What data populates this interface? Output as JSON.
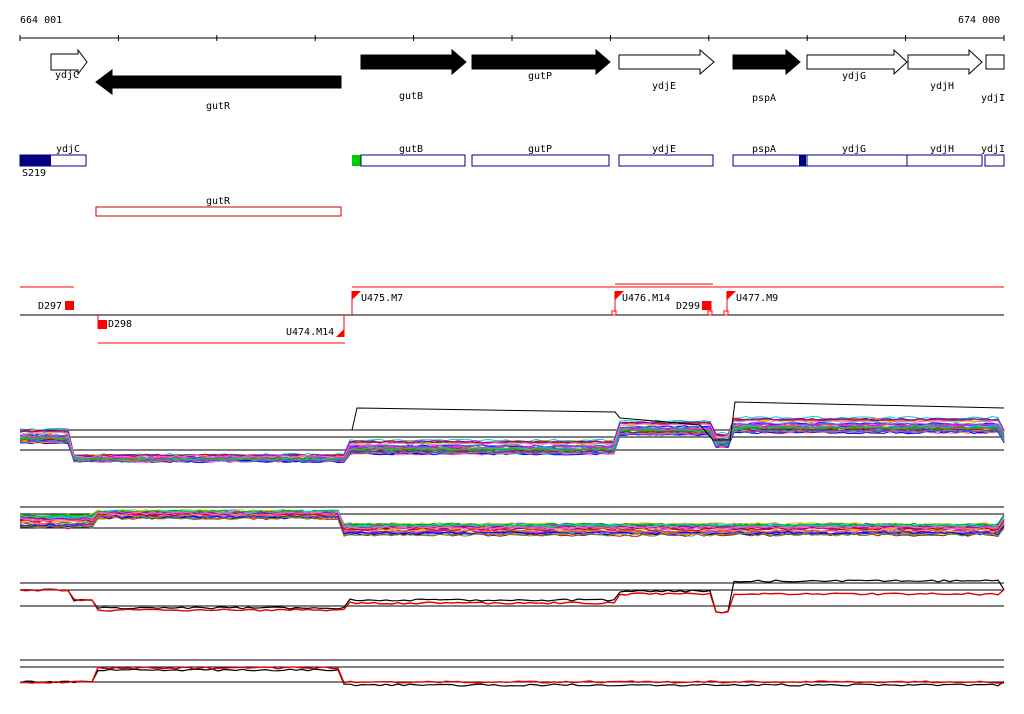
{
  "ruler": {
    "start_label": "664 001",
    "end_label": "674 000"
  },
  "genes": [
    {
      "name": "ydjC",
      "strand": "+",
      "filled": false
    },
    {
      "name": "gutR",
      "strand": "-",
      "filled": true
    },
    {
      "name": "gutB",
      "strand": "+",
      "filled": true
    },
    {
      "name": "gutP",
      "strand": "+",
      "filled": true
    },
    {
      "name": "ydjE",
      "strand": "+",
      "filled": false
    },
    {
      "name": "pspA",
      "strand": "+",
      "filled": true
    },
    {
      "name": "ydjG",
      "strand": "+",
      "filled": false
    },
    {
      "name": "ydjH",
      "strand": "+",
      "filled": false
    },
    {
      "name": "ydjI",
      "strand": "+",
      "filled": false
    }
  ],
  "annotation_boxes": [
    {
      "name": "ydjC",
      "color": "#000080"
    },
    {
      "name": "gutB",
      "color": "#000080"
    },
    {
      "name": "gutP",
      "color": "#000080"
    },
    {
      "name": "ydjE",
      "color": "#000080"
    },
    {
      "name": "pspA",
      "color": "#000080"
    },
    {
      "name": "ydjG",
      "color": "#000080"
    },
    {
      "name": "ydjH",
      "color": "#000080"
    },
    {
      "name": "ydjI",
      "color": "#000080"
    },
    {
      "name": "gutR",
      "color": "#cc0000"
    }
  ],
  "site_label": "S219",
  "markers": [
    {
      "label": "D297",
      "kind": "block"
    },
    {
      "label": "D298",
      "kind": "block"
    },
    {
      "label": "U474.M14",
      "kind": "flag"
    },
    {
      "label": "U475.M7",
      "kind": "flag"
    },
    {
      "label": "U476.M14",
      "kind": "flag"
    },
    {
      "label": "D299",
      "kind": "block"
    },
    {
      "label": "U477.M9",
      "kind": "flag"
    }
  ],
  "colors": {
    "gene_fill": "#000000",
    "annotation": "#000080",
    "marker": "#ff0000",
    "accent_green": "#00cc00"
  }
}
